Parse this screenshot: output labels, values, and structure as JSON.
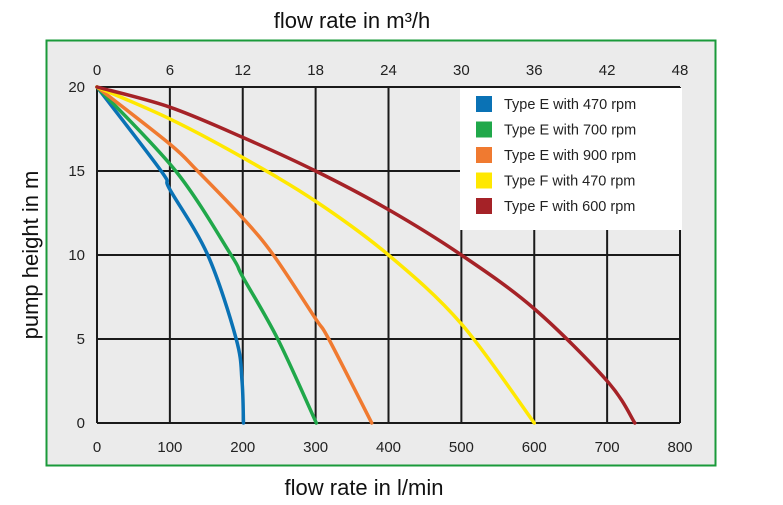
{
  "chart_data": {
    "type": "line",
    "title": "",
    "xlabel": "flow rate in l/min",
    "x2label": "flow rate in m³/h",
    "ylabel": "pump height in m",
    "xlim": [
      0,
      800
    ],
    "x2lim": [
      0,
      48
    ],
    "ylim": [
      0,
      20
    ],
    "xticks": [
      0,
      100,
      200,
      300,
      400,
      500,
      600,
      700,
      800
    ],
    "x2ticks": [
      0,
      6,
      12,
      18,
      24,
      30,
      36,
      42,
      48
    ],
    "yticks": [
      0,
      5,
      10,
      15,
      20
    ],
    "grid": true,
    "legend_position": "top-right",
    "background": "#ebebeb",
    "frame_color": "#1a9a3a",
    "series": [
      {
        "name": "Type E with 470 rpm",
        "color": "#0a72b5",
        "x": [
          0,
          88,
          100,
          152,
          191,
          199,
          201
        ],
        "y": [
          20,
          15,
          13.9,
          10,
          5,
          2.5,
          0
        ]
      },
      {
        "name": "Type E with 700 rpm",
        "color": "#20a84a",
        "x": [
          0,
          108,
          184,
          200,
          248,
          301
        ],
        "y": [
          20,
          15,
          10,
          8.7,
          5,
          0
        ]
      },
      {
        "name": "Type E with 900 rpm",
        "color": "#f07a30",
        "x": [
          0,
          100,
          138,
          200,
          242,
          300,
          318,
          377
        ],
        "y": [
          20,
          16.6,
          15,
          12.2,
          10,
          6.2,
          5,
          0
        ]
      },
      {
        "name": "Type F with 470 rpm",
        "color": "#ffe800",
        "x": [
          0,
          100,
          200,
          300,
          400,
          500,
          600
        ],
        "y": [
          20,
          18.1,
          15.8,
          13.2,
          10,
          5.9,
          0
        ]
      },
      {
        "name": "Type F with 600 rpm",
        "color": "#a52227",
        "x": [
          0,
          100,
          200,
          300,
          400,
          500,
          600,
          700,
          738
        ],
        "y": [
          20,
          18.8,
          17,
          15,
          12.7,
          10,
          6.8,
          2.5,
          0
        ]
      }
    ]
  }
}
